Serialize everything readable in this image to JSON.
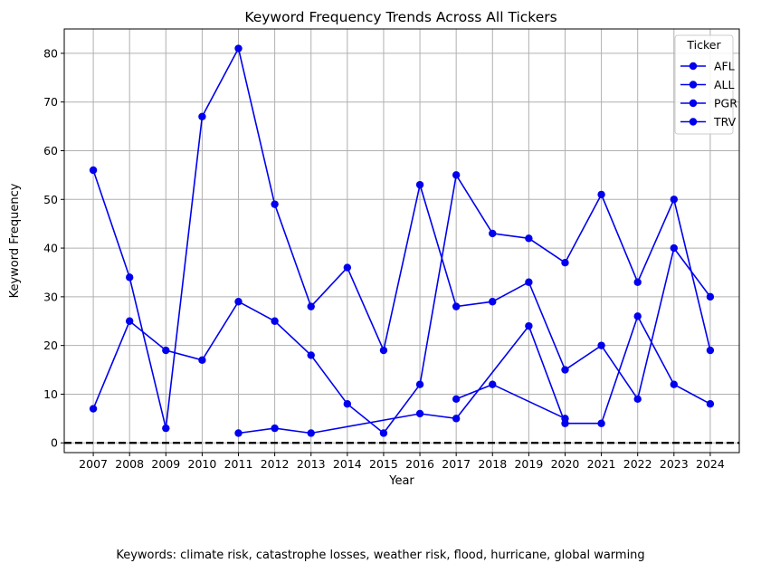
{
  "chart_data": {
    "type": "line",
    "title": "Keyword Frequency Trends Across All Tickers",
    "xlabel": "Year",
    "ylabel": "Keyword Frequency",
    "x": [
      2007,
      2008,
      2009,
      2010,
      2011,
      2012,
      2013,
      2014,
      2015,
      2016,
      2017,
      2018,
      2019,
      2020,
      2021,
      2022,
      2023,
      2024
    ],
    "xlim": [
      2006.2,
      2024.8
    ],
    "ylim": [
      -2,
      85
    ],
    "yticks": [
      0,
      10,
      20,
      30,
      40,
      50,
      60,
      70,
      80
    ],
    "grid": true,
    "reference_line": {
      "y": 0,
      "style": "dashed",
      "color": "#000000"
    },
    "legend": {
      "title": "Ticker",
      "placement": "top-right"
    },
    "series_color": "#0000ee",
    "series": [
      {
        "name": "AFL",
        "points": [
          [
            2007,
            56
          ],
          [
            2008,
            34
          ],
          [
            2009,
            3
          ],
          [
            2010,
            67
          ],
          [
            2011,
            81
          ],
          [
            2012,
            49
          ],
          [
            2013,
            28
          ],
          [
            2014,
            36
          ],
          [
            2015,
            19
          ],
          [
            2016,
            53
          ],
          [
            2017,
            28
          ],
          [
            2018,
            29
          ],
          [
            2019,
            33
          ],
          [
            2020,
            15
          ],
          [
            2021,
            20
          ],
          [
            2022,
            9
          ],
          [
            2023,
            40
          ],
          [
            2024,
            30
          ]
        ]
      },
      {
        "name": "ALL",
        "points": [
          [
            2007,
            7
          ],
          [
            2008,
            25
          ],
          [
            2009,
            19
          ],
          [
            2010,
            17
          ],
          [
            2011,
            29
          ],
          [
            2012,
            25
          ],
          [
            2013,
            18
          ],
          [
            2014,
            8
          ],
          [
            2015,
            2
          ],
          [
            2016,
            12
          ],
          [
            2017,
            55
          ],
          [
            2018,
            43
          ],
          [
            2019,
            42
          ],
          [
            2020,
            37
          ],
          [
            2021,
            51
          ],
          [
            2022,
            33
          ],
          [
            2023,
            50
          ],
          [
            2024,
            19
          ]
        ]
      },
      {
        "name": "PGR",
        "points": [
          [
            2011,
            2
          ],
          [
            2012,
            3
          ],
          [
            2013,
            2
          ],
          [
            2016,
            6
          ],
          [
            2017,
            5
          ],
          [
            2019,
            24
          ],
          [
            2020,
            4
          ],
          [
            2021,
            4
          ],
          [
            2022,
            26
          ],
          [
            2023,
            12
          ],
          [
            2024,
            8
          ]
        ]
      },
      {
        "name": "TRV",
        "points": [
          [
            2017,
            9
          ],
          [
            2018,
            12
          ],
          [
            2020,
            5
          ]
        ]
      }
    ]
  },
  "caption": "Keywords: climate risk, catastrophe losses, weather risk, flood, hurricane, global warming"
}
